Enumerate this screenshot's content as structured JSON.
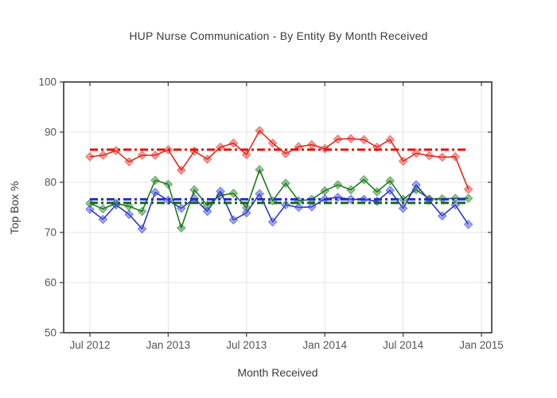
{
  "chart_data": {
    "type": "line",
    "title": "HUP Nurse Communication - By Entity By Month Received",
    "xlabel": "Month Received",
    "ylabel": "Top Box %",
    "ylim": [
      50,
      100
    ],
    "yticks": [
      50,
      60,
      70,
      80,
      90,
      100
    ],
    "x_tick_labels": [
      "Jul 2012",
      "Jan 2013",
      "Jul 2013",
      "Jan 2014",
      "Jul 2014",
      "Jan 2015"
    ],
    "x_tick_indices": [
      0,
      6,
      12,
      18,
      24,
      30
    ],
    "categories": [
      "Jul 2012",
      "Aug 2012",
      "Sep 2012",
      "Oct 2012",
      "Nov 2012",
      "Dec 2012",
      "Jan 2013",
      "Feb 2013",
      "Mar 2013",
      "Apr 2013",
      "May 2013",
      "Jun 2013",
      "Jul 2013",
      "Aug 2013",
      "Sep 2013",
      "Oct 2013",
      "Nov 2013",
      "Dec 2013",
      "Jan 2014",
      "Feb 2014",
      "Mar 2014",
      "Apr 2014",
      "May 2014",
      "Jun 2014",
      "Jul 2014",
      "Aug 2014",
      "Sep 2014",
      "Oct 2014",
      "Nov 2014",
      "Dec 2014"
    ],
    "grid": true,
    "legend_position": "none",
    "mean_line_style": "dash-dot",
    "colors": {
      "background": "#ffffff",
      "gridline": "#e4e4e4",
      "axis_border": "#333333",
      "tick_label": "#555555",
      "title_text": "#3b3b3b"
    },
    "series": [
      {
        "name": "red",
        "color": "#e02b20",
        "marker_fill": "rgba(224,43,32,0.45)",
        "mean_line": 86.5,
        "mean_color": "#e3120b",
        "values": [
          85.1,
          85.4,
          86.3,
          84.1,
          85.4,
          85.4,
          86.5,
          82.4,
          86.2,
          84.6,
          87.0,
          87.8,
          85.5,
          90.3,
          87.8,
          85.7,
          87.1,
          87.5,
          86.7,
          88.6,
          88.7,
          88.5,
          87.0,
          88.5,
          84.2,
          85.8,
          85.3,
          85.0,
          85.1,
          78.6
        ]
      },
      {
        "name": "green",
        "color": "#1d7a1d",
        "marker_fill": "rgba(29,122,29,0.45)",
        "mean_line": 75.9,
        "mean_color": "#14661a",
        "values": [
          75.8,
          74.7,
          75.8,
          75.2,
          74.2,
          80.4,
          79.6,
          70.9,
          78.5,
          75.4,
          77.4,
          77.8,
          74.9,
          82.5,
          76.3,
          79.8,
          76.3,
          76.6,
          78.3,
          79.5,
          78.5,
          80.5,
          78.1,
          80.3,
          76.6,
          78.5,
          76.7,
          76.7,
          76.8,
          76.8
        ]
      },
      {
        "name": "blue",
        "color": "#2b35cd",
        "marker_fill": "rgba(70,84,218,0.5)",
        "mean_line": 76.6,
        "mean_color": "#1f2fd0",
        "values": [
          74.6,
          72.6,
          75.5,
          73.6,
          70.7,
          78.0,
          76.4,
          74.8,
          76.8,
          74.2,
          78.2,
          72.5,
          73.9,
          77.7,
          72.1,
          75.5,
          75.0,
          75.1,
          76.7,
          77.0,
          76.6,
          76.6,
          76.2,
          78.4,
          74.8,
          79.5,
          76.4,
          73.3,
          75.5,
          71.6
        ]
      }
    ]
  }
}
